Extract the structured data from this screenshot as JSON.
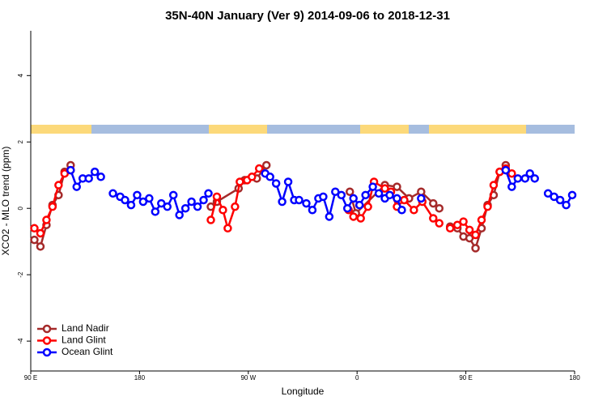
{
  "chart_data": {
    "type": "line",
    "title": "35N-40N January (Ver 9)   2014-09-06 to 2018-12-31",
    "x_label": "Longitude",
    "y_label": "XCO2 - MLO trend (ppm)",
    "xlim": [
      90,
      540
    ],
    "xticks": [
      {
        "value": 90,
        "label": "90 E"
      },
      180,
      {
        "value": 270,
        "label": "90 W"
      },
      {
        "value": 360,
        "label": "0"
      },
      {
        "value": 450,
        "label": "90 E"
      },
      {
        "value": 540,
        "label": "180"
      }
    ],
    "ylim": [
      -4.9,
      5.35
    ],
    "yticks": [
      -4,
      -2,
      0,
      2,
      4
    ],
    "legend": "bottom-left",
    "series": [
      {
        "name": "Land Nadir",
        "color": "#a52a2a",
        "x": [
          93,
          98,
          103,
          108,
          113,
          118,
          123,
          null,
          239,
          244,
          262,
          267,
          277,
          285,
          null,
          354,
          359,
          383,
          393,
          403,
          413,
          423,
          428,
          null,
          437,
          443,
          448,
          453,
          458,
          463,
          468,
          473,
          478,
          483
        ],
        "values": [
          -0.95,
          -1.15,
          -0.5,
          0.1,
          0.4,
          1.1,
          1.3,
          null,
          0.05,
          0.2,
          0.6,
          0.85,
          0.9,
          1.3,
          null,
          0.5,
          -0.15,
          0.7,
          0.65,
          0.3,
          0.5,
          0.15,
          0.0,
          null,
          -0.55,
          -0.6,
          -0.85,
          -0.9,
          -1.2,
          -0.6,
          0.1,
          0.4,
          1.1,
          1.3
        ]
      },
      {
        "name": "Land Glint",
        "color": "#ff0000",
        "x": [
          93,
          98,
          103,
          108,
          113,
          118,
          123,
          null,
          239,
          244,
          249,
          253,
          259,
          263,
          269,
          273,
          279,
          null,
          353,
          357,
          363,
          369,
          374,
          383,
          388,
          393,
          399,
          407,
          414,
          423,
          428,
          null,
          437,
          443,
          448,
          453,
          458,
          463,
          468,
          473,
          478,
          483,
          488
        ],
        "values": [
          -0.6,
          -0.75,
          -0.35,
          0.05,
          0.7,
          1.05,
          1.15,
          null,
          -0.35,
          0.35,
          -0.05,
          -0.6,
          0.05,
          0.8,
          0.85,
          0.95,
          1.2,
          null,
          -0.05,
          -0.25,
          -0.3,
          0.05,
          0.8,
          0.6,
          0.5,
          0.05,
          0.25,
          -0.05,
          0.2,
          -0.3,
          -0.45,
          null,
          -0.6,
          -0.5,
          -0.4,
          -0.65,
          -0.8,
          -0.35,
          0.05,
          0.7,
          1.1,
          1.2,
          1.05
        ]
      },
      {
        "name": "Ocean Glint",
        "color": "#0000ff",
        "x": [
          123,
          128,
          133,
          138,
          143,
          148,
          null,
          158,
          164,
          168,
          173,
          178,
          183,
          188,
          193,
          198,
          203,
          208,
          213,
          218,
          223,
          228,
          233,
          237,
          null,
          284,
          288,
          293,
          298,
          303,
          308,
          312,
          318,
          323,
          328,
          332,
          337,
          342,
          347,
          352,
          357,
          362,
          367,
          373,
          378,
          383,
          387,
          393,
          397,
          null,
          413,
          null,
          483,
          488,
          493,
          499,
          503,
          507,
          null,
          518,
          523,
          528,
          533,
          538
        ],
        "values": [
          1.15,
          0.65,
          0.9,
          0.9,
          1.1,
          0.95,
          null,
          0.45,
          0.35,
          0.25,
          0.1,
          0.4,
          0.2,
          0.3,
          -0.1,
          0.15,
          0.05,
          0.4,
          -0.2,
          0.0,
          0.2,
          0.05,
          0.25,
          0.45,
          null,
          1.05,
          0.95,
          0.75,
          0.2,
          0.8,
          0.25,
          0.25,
          0.15,
          -0.05,
          0.3,
          0.35,
          -0.25,
          0.5,
          0.4,
          0.0,
          0.3,
          0.1,
          0.4,
          0.65,
          0.45,
          0.3,
          0.4,
          0.3,
          -0.05,
          null,
          0.3,
          null,
          1.15,
          0.65,
          0.9,
          0.9,
          1.05,
          0.9,
          null,
          0.45,
          0.35,
          0.25,
          0.1,
          0.4
        ]
      }
    ]
  }
}
